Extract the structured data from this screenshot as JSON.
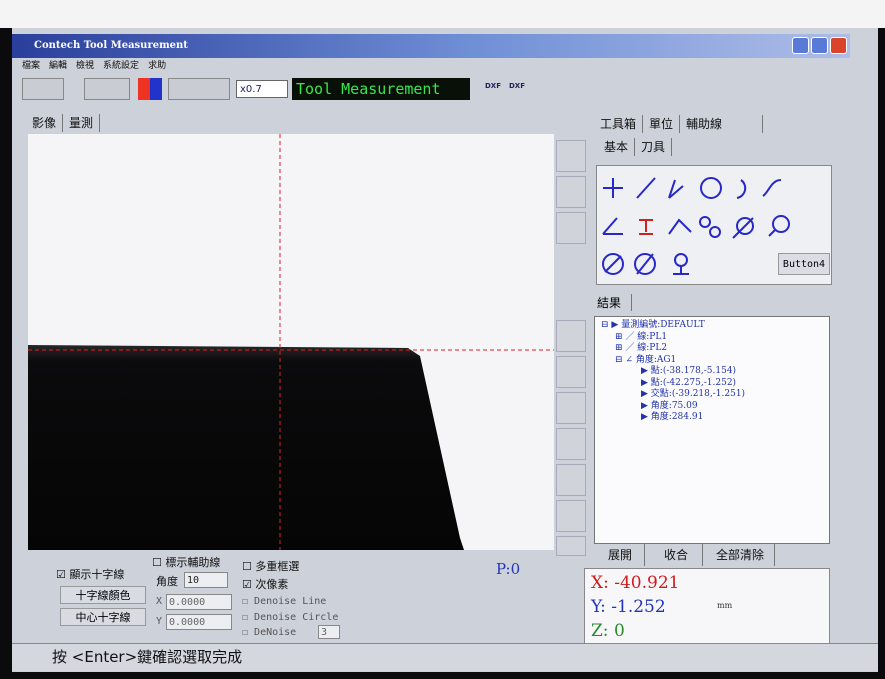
{
  "window": {
    "title": "Contech Tool Measurement"
  },
  "menu": [
    "檔案",
    "編輯",
    "檢視",
    "系統設定",
    "求助"
  ],
  "toolbar": {
    "zoom": "x0.7",
    "label": "Tool Measurement",
    "buttons": [
      "DXF",
      "DXF"
    ]
  },
  "tabs": {
    "left": [
      "影像",
      "量測"
    ],
    "right": [
      "工具箱",
      "單位",
      "輔助線"
    ],
    "sub": [
      "基本",
      "刀具"
    ]
  },
  "toolbox": {
    "button": "Button4"
  },
  "results": {
    "label": "結果",
    "tree": [
      "量測編號:DEFAULT",
      "線:PL1",
      "線:PL2",
      "角度:AG1",
      "點:(-38.178,-5.154)",
      "點:(-42.275,-1.252)",
      "交點:(-39.218,-1.251)",
      "角度:75.09",
      "角度:284.91"
    ],
    "buttons": [
      "展開",
      "收合",
      "全部清除"
    ]
  },
  "options": {
    "show_cross": "顯示十字線",
    "cross_color": "十字線顏色",
    "center_cross": "中心十字線",
    "aux_line": "標示輔助線",
    "angle_label": "角度",
    "angle": "10",
    "x_label": "X",
    "x": "0.0000",
    "y_label": "Y",
    "y": "0.0000",
    "multi_select": "多重框選",
    "subpixel": "次像素",
    "denoise_line": "Denoise Line",
    "denoise_circle": "Denoise Circle",
    "denoise": "DeNoise",
    "denoise_value": "3",
    "p": "P:0"
  },
  "coords": {
    "x_label": "X:",
    "x": "-40.921",
    "y_label": "Y:",
    "y": "-1.252",
    "z_label": "Z:",
    "z": "0",
    "unit": "mm"
  },
  "status": "按 <Enter>鍵確認選取完成"
}
